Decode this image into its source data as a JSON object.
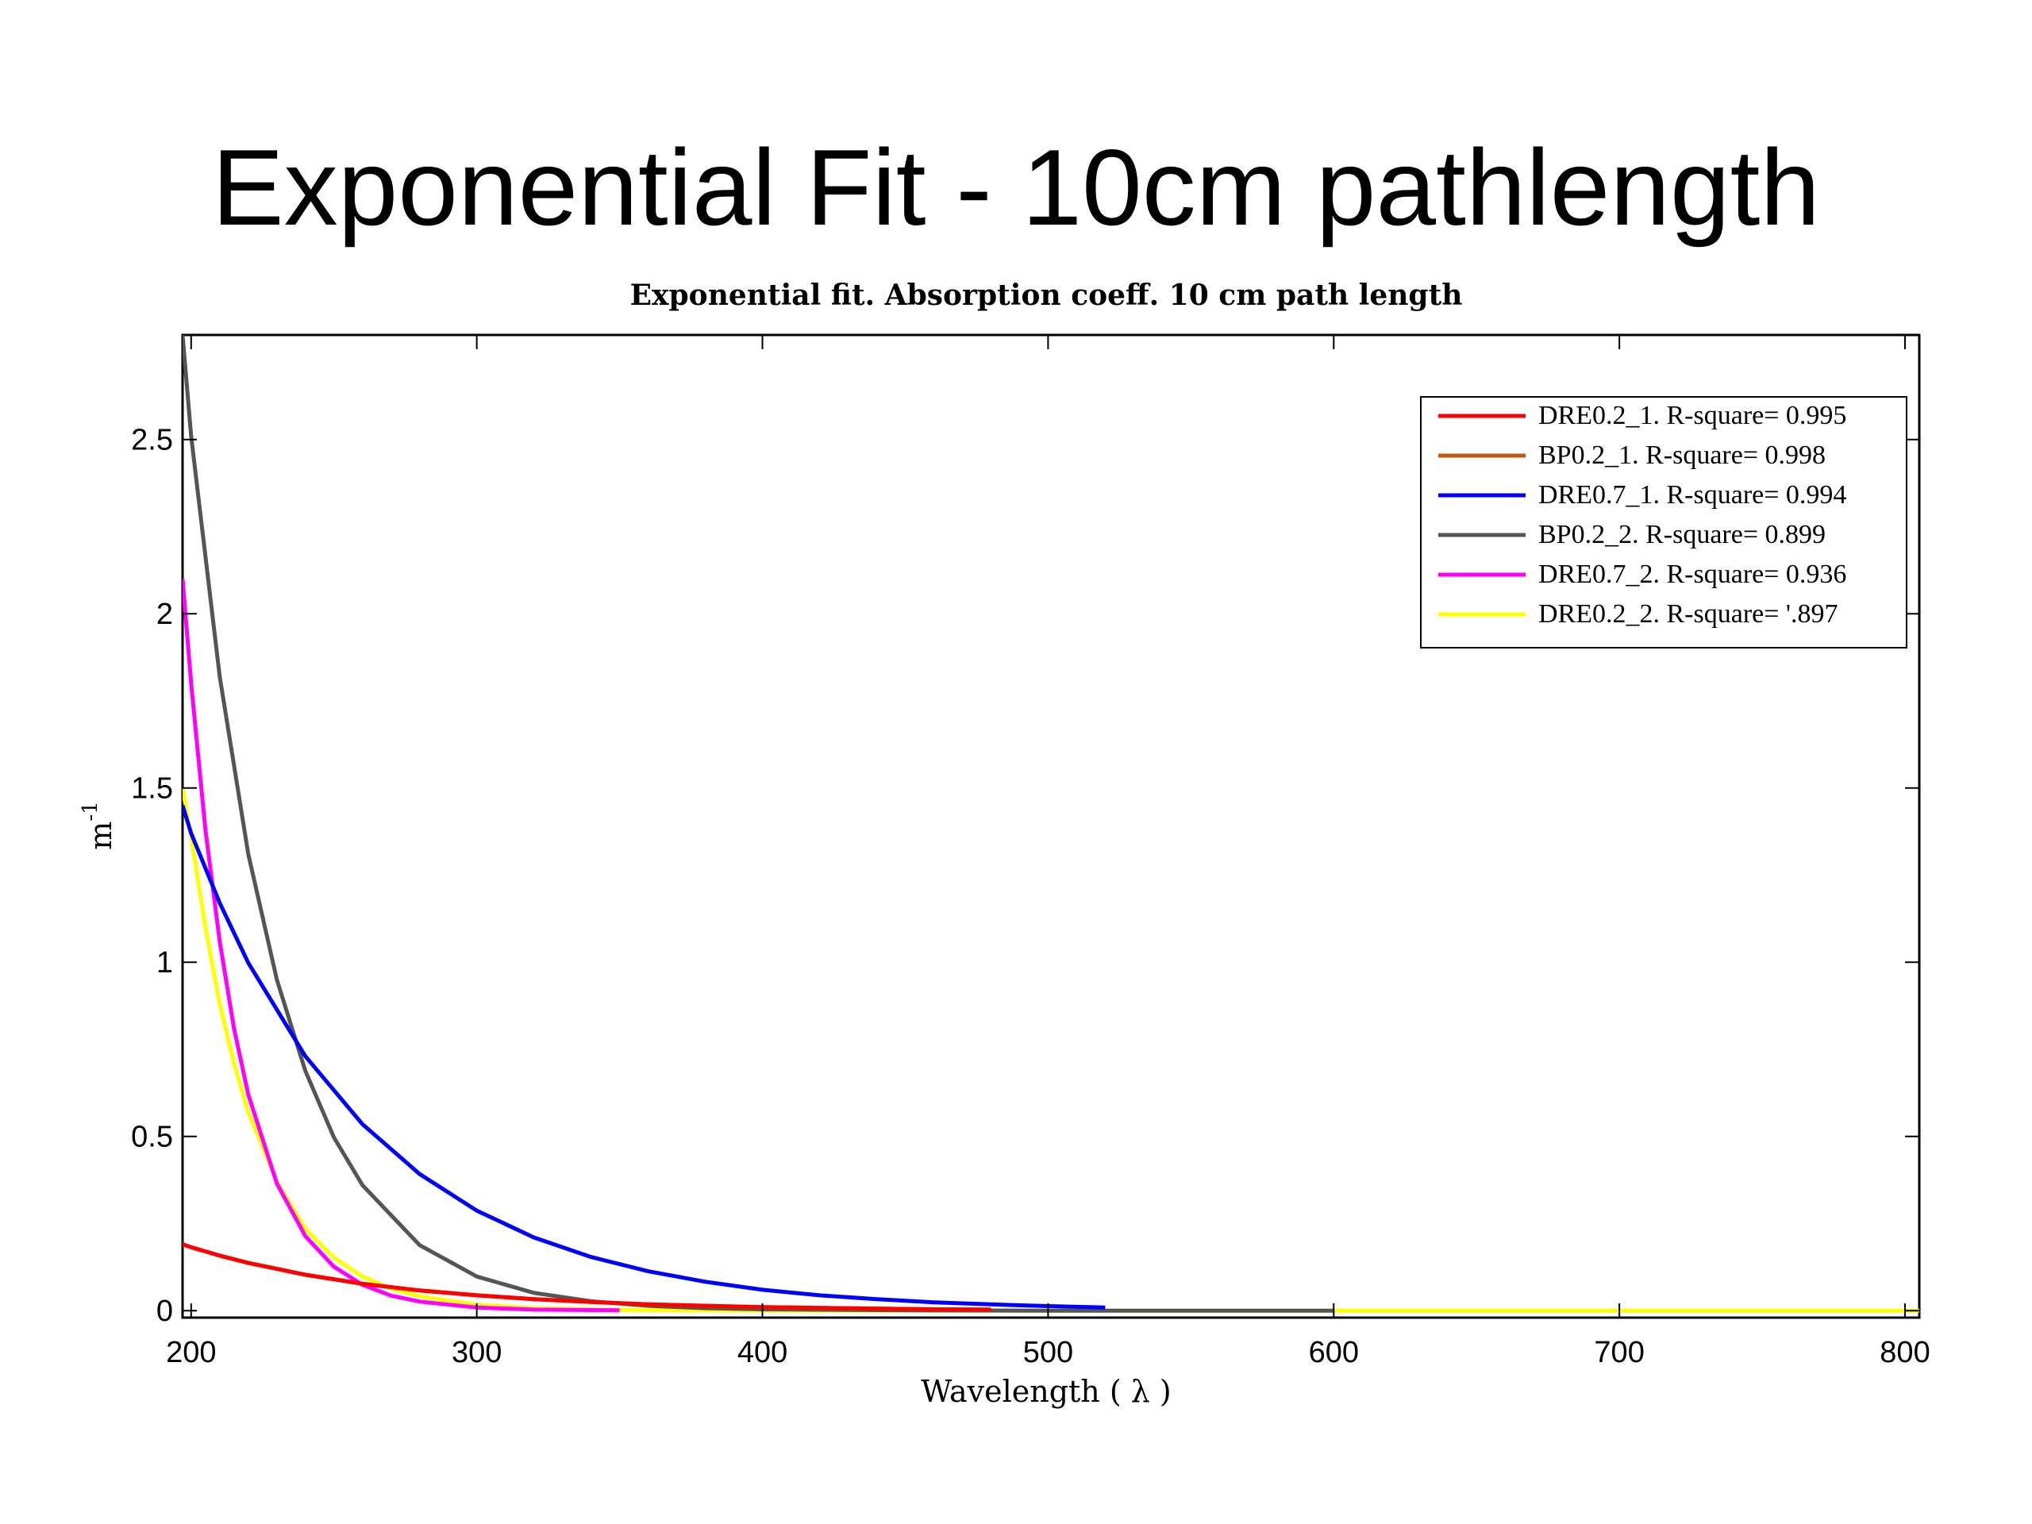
{
  "slide": {
    "title": "Exponential Fit - 10cm pathlength"
  },
  "chart_data": {
    "type": "line",
    "title": "Exponential fit. Absorption coeff. 10 cm path length",
    "xlabel": "Wavelength ( λ )",
    "ylabel": "m",
    "ylabel_superscript": "-1",
    "xlim": [
      197,
      805
    ],
    "ylim": [
      -0.02,
      2.8
    ],
    "xticks": [
      200,
      300,
      400,
      500,
      600,
      700,
      800
    ],
    "xtick_labels": [
      "200",
      "300",
      "400",
      "500",
      "600",
      "700",
      "800"
    ],
    "yticks": [
      0,
      0.5,
      1,
      1.5,
      2,
      2.5
    ],
    "ytick_labels": [
      "0",
      "0.5",
      "1",
      "1.5",
      "2",
      "2.5"
    ],
    "grid": false,
    "legend_position": "top-right",
    "series": [
      {
        "name": "DRE0.2_1. R-square= 0.995",
        "color": "#ff0000",
        "x": [
          197,
          200,
          210,
          220,
          240,
          260,
          280,
          300,
          320,
          340,
          360,
          380,
          400,
          420,
          440,
          460,
          480
        ],
        "y": [
          0.19,
          0.182,
          0.158,
          0.137,
          0.103,
          0.077,
          0.058,
          0.044,
          0.033,
          0.025,
          0.018,
          0.014,
          0.01,
          0.008,
          0.006,
          0.004,
          0.003
        ]
      },
      {
        "name": "BP0.2_1. R-square= 0.998",
        "color": "#c05a10",
        "x": [
          197,
          200,
          210,
          220,
          240,
          260,
          280,
          300,
          320,
          340,
          360,
          380,
          400,
          420,
          440,
          460,
          480
        ],
        "y": [
          0.19,
          0.182,
          0.158,
          0.137,
          0.103,
          0.077,
          0.058,
          0.044,
          0.033,
          0.025,
          0.018,
          0.014,
          0.01,
          0.008,
          0.006,
          0.004,
          0.003
        ]
      },
      {
        "name": "DRE0.7_1. R-square= 0.994",
        "color": "#0000ff",
        "x": [
          197,
          200,
          210,
          220,
          240,
          260,
          280,
          300,
          320,
          340,
          360,
          380,
          400,
          420,
          440,
          460,
          480,
          500,
          520
        ],
        "y": [
          1.45,
          1.37,
          1.17,
          0.998,
          0.73,
          0.535,
          0.392,
          0.287,
          0.21,
          0.154,
          0.113,
          0.083,
          0.06,
          0.044,
          0.033,
          0.024,
          0.018,
          0.013,
          0.009
        ]
      },
      {
        "name": "BP0.2_2. R-square= 0.899",
        "color": "#555555",
        "x": [
          197,
          200,
          210,
          220,
          230,
          240,
          250,
          260,
          280,
          300,
          320,
          340,
          360,
          380,
          400,
          450,
          500,
          550,
          600
        ],
        "y": [
          2.8,
          2.51,
          1.82,
          1.31,
          0.95,
          0.688,
          0.497,
          0.36,
          0.188,
          0.098,
          0.051,
          0.027,
          0.014,
          0.007,
          0.004,
          0.001,
          0.0,
          0.0,
          0.0
        ]
      },
      {
        "name": "DRE0.7_2. R-square= 0.936",
        "color": "#ff00ff",
        "x": [
          197,
          200,
          205,
          210,
          215,
          220,
          230,
          240,
          250,
          260,
          270,
          280,
          300,
          320,
          350
        ],
        "y": [
          2.1,
          1.8,
          1.38,
          1.06,
          0.81,
          0.62,
          0.365,
          0.214,
          0.126,
          0.074,
          0.043,
          0.026,
          0.009,
          0.003,
          0.001
        ]
      },
      {
        "name": "DRE0.2_2. R-square= '.897",
        "color": "#ffff00",
        "x": [
          197,
          200,
          205,
          210,
          215,
          220,
          230,
          240,
          250,
          260,
          270,
          280,
          300,
          320,
          350,
          400,
          500,
          600,
          700,
          805
        ],
        "y": [
          1.5,
          1.36,
          1.1,
          0.88,
          0.71,
          0.57,
          0.37,
          0.235,
          0.152,
          0.098,
          0.063,
          0.041,
          0.017,
          0.007,
          0.002,
          0.0,
          0.0,
          0.0,
          0.0,
          0.0
        ]
      }
    ]
  }
}
